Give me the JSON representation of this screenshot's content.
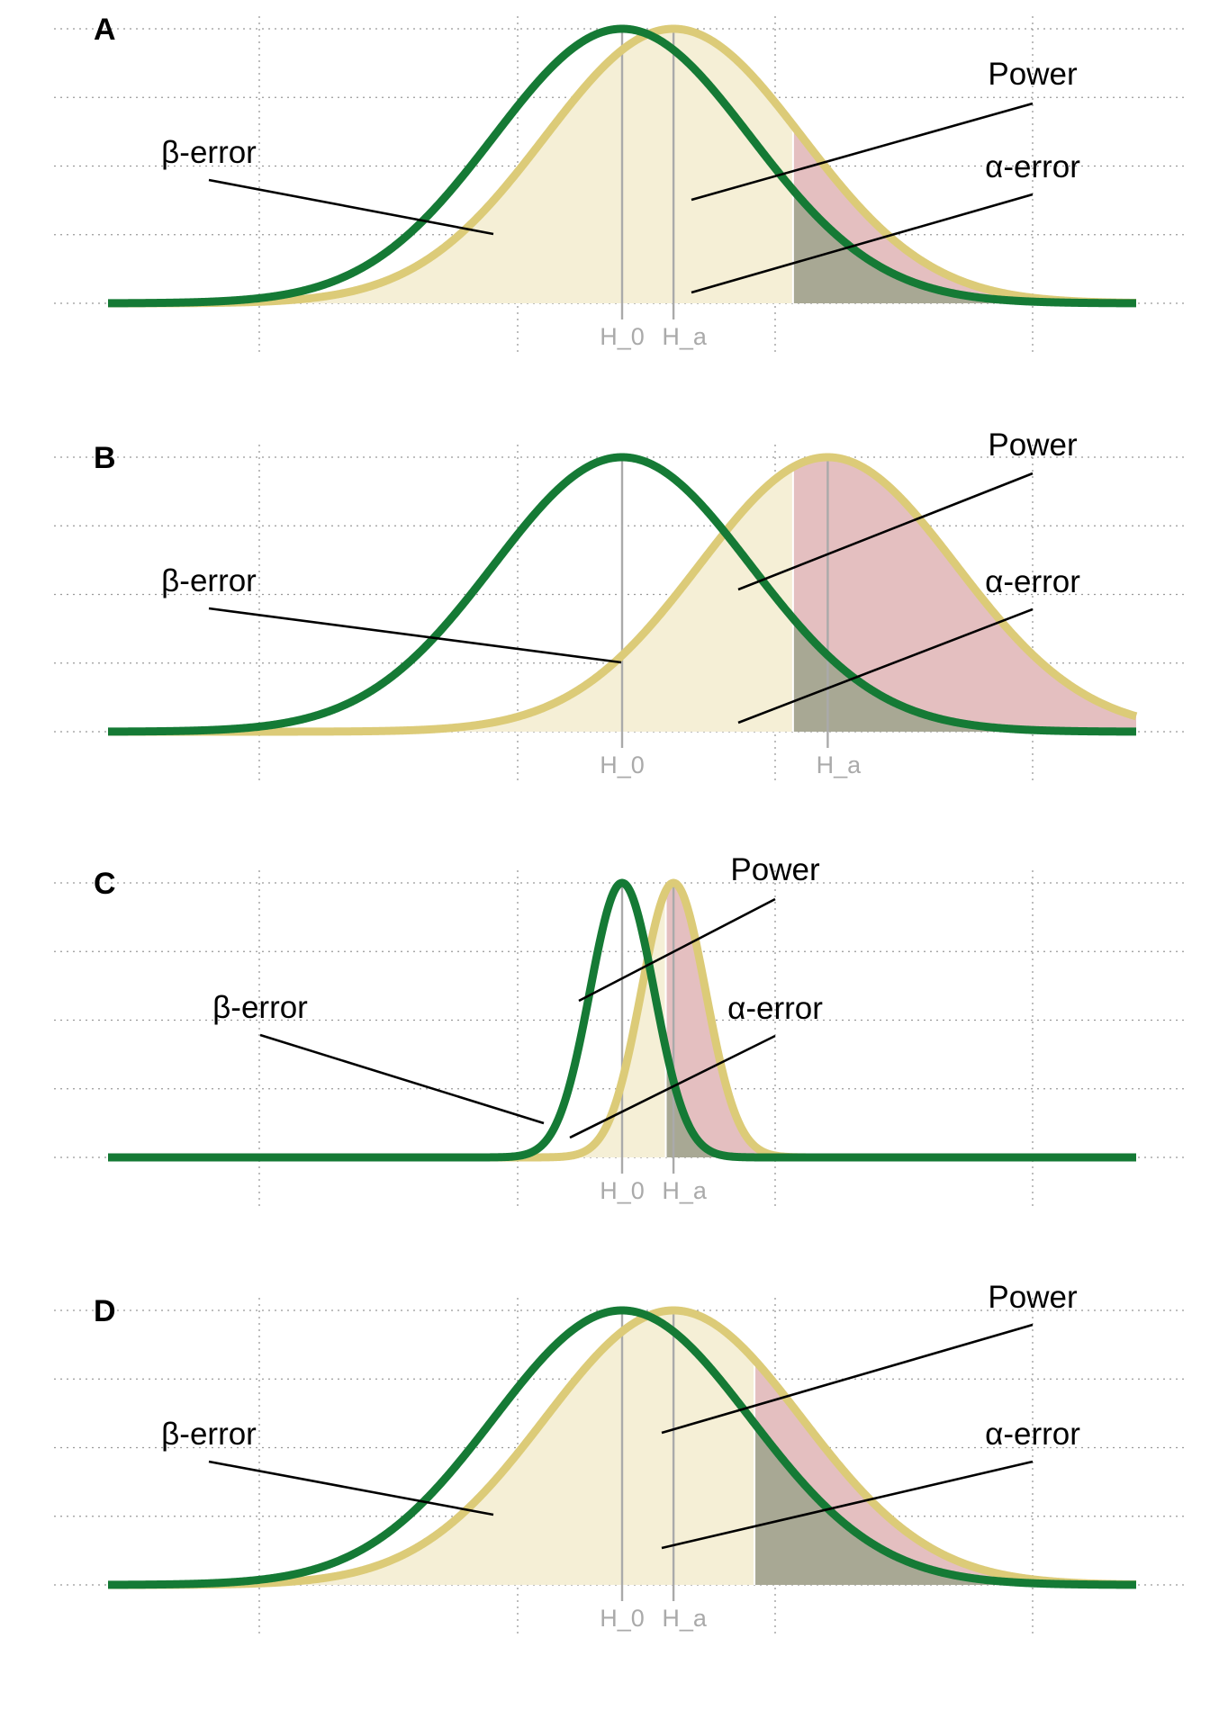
{
  "colors": {
    "h0_curve": "#157a35",
    "ha_curve": "#dccb78",
    "beta_fill": "#f5efd6",
    "power_fill": "#e4bfc0",
    "alpha_fill": "#a8a894",
    "mean_line": "#aaaaaa",
    "mean_label": "#aaaaaa",
    "grid": "#999999",
    "annotation": "#000000"
  },
  "chart_data": [
    {
      "type": "area",
      "panel": "A",
      "xlim": [
        -4,
        4
      ],
      "ylim": [
        0,
        1
      ],
      "grid": "dotted",
      "distributions": {
        "h0": {
          "mean": 0,
          "sd": 1
        },
        "ha": {
          "mean": 0.4,
          "sd": 1
        }
      },
      "critical_value": 1.33,
      "tick_labels": {
        "h0": "H_0",
        "ha": "H_a"
      },
      "annotations": {
        "beta": "β-error",
        "power": "Power",
        "alpha": "α-error"
      }
    },
    {
      "type": "area",
      "panel": "B",
      "xlim": [
        -4,
        4
      ],
      "ylim": [
        0,
        1
      ],
      "grid": "dotted",
      "distributions": {
        "h0": {
          "mean": 0,
          "sd": 1
        },
        "ha": {
          "mean": 1.6,
          "sd": 1
        }
      },
      "critical_value": 1.33,
      "tick_labels": {
        "h0": "H_0",
        "ha": "H_a"
      },
      "annotations": {
        "beta": "β-error",
        "power": "Power",
        "alpha": "α-error"
      }
    },
    {
      "type": "area",
      "panel": "C",
      "xlim": [
        -4,
        4
      ],
      "ylim": [
        0,
        1
      ],
      "grid": "dotted",
      "distributions": {
        "h0": {
          "mean": 0,
          "sd": 0.25
        },
        "ha": {
          "mean": 0.4,
          "sd": 0.25
        }
      },
      "critical_value": 0.34,
      "tick_labels": {
        "h0": "H_0",
        "ha": "H_a"
      },
      "annotations": {
        "beta": "β-error",
        "power": "Power",
        "alpha": "α-error"
      }
    },
    {
      "type": "area",
      "panel": "D",
      "xlim": [
        -4,
        4
      ],
      "ylim": [
        0,
        1
      ],
      "grid": "dotted",
      "distributions": {
        "h0": {
          "mean": 0,
          "sd": 1
        },
        "ha": {
          "mean": 0.4,
          "sd": 1
        }
      },
      "critical_value": 1.03,
      "tick_labels": {
        "h0": "H_0",
        "ha": "H_a"
      },
      "annotations": {
        "beta": "β-error",
        "power": "Power",
        "alpha": "α-error"
      }
    }
  ]
}
